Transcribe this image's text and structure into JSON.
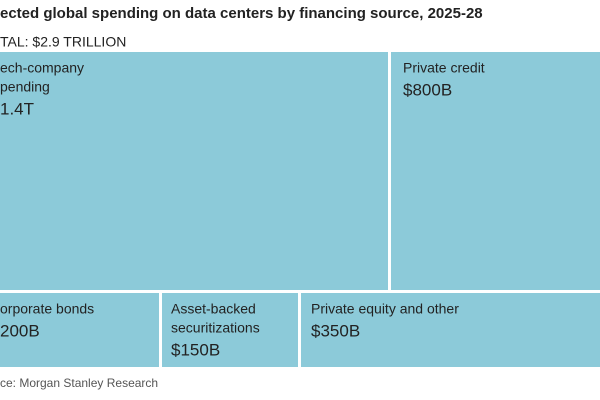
{
  "chart_data": {
    "type": "treemap",
    "title": "ected global spending on data centers by financing source, 2025-28",
    "subtitle": "TAL: $2.9 TRILLION",
    "source": "ce: Morgan Stanley Research",
    "color": "#8ccad9",
    "categories": [
      [
        "ech-company",
        "pending"
      ],
      [
        "Private credit"
      ],
      [
        "orporate bonds"
      ],
      [
        "Asset-backed",
        "securitizations"
      ],
      [
        "Private equity and other"
      ]
    ],
    "values": [
      1400,
      800,
      200,
      150,
      350
    ],
    "value_labels": [
      "1.4T",
      "$800B",
      "200B",
      "$150B",
      "$350B"
    ]
  }
}
